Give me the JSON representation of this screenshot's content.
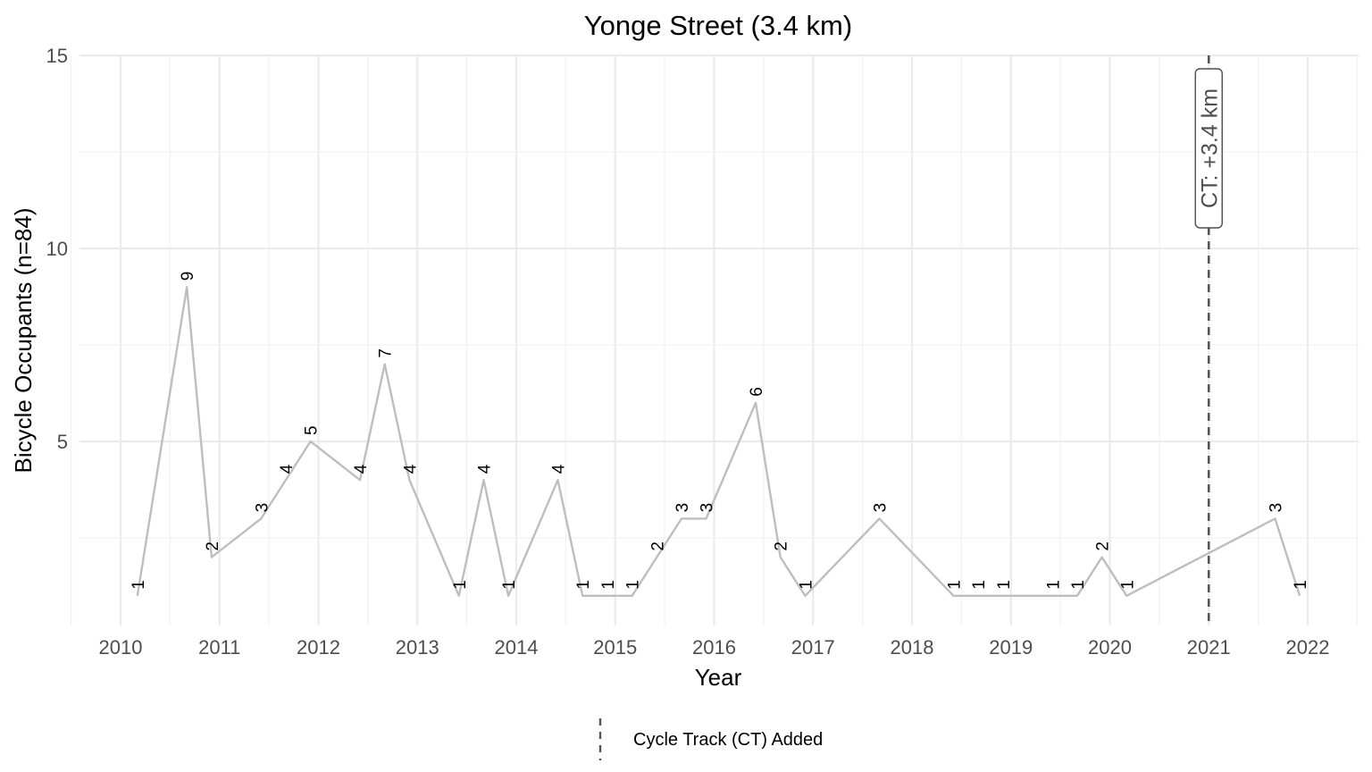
{
  "chart_data": {
    "type": "line",
    "title": "Yonge Street (3.4 km)",
    "xlabel": "Year",
    "ylabel": "Bicycle Occupants (n=84)",
    "xlim": [
      2010,
      2022
    ],
    "ylim": [
      0.5,
      15
    ],
    "x_ticks": [
      2010,
      2011,
      2012,
      2013,
      2014,
      2015,
      2016,
      2017,
      2018,
      2019,
      2020,
      2021,
      2022
    ],
    "x_tick_labels": [
      "2010",
      "2011",
      "2012",
      "2013",
      "2014",
      "2015",
      "2016",
      "2017",
      "2018",
      "2019",
      "2020",
      "2021",
      "2022"
    ],
    "y_ticks": [
      5,
      10,
      15
    ],
    "y_tick_labels": [
      "5",
      "10",
      "15"
    ],
    "grid": true,
    "line_color": "#bebebe",
    "series": [
      {
        "x": [
          2010.17,
          2010.67,
          2010.92,
          2011.42,
          2011.92,
          2012.42,
          2012.67,
          2012.92,
          2013.42,
          2013.67,
          2013.92,
          2014.42,
          2014.67,
          2014.92,
          2015.17,
          2015.42,
          2015.67,
          2015.92,
          2016.42,
          2016.67,
          2016.92,
          2017.67,
          2018.42,
          2018.67,
          2018.92,
          2019.42,
          2019.67,
          2019.92,
          2020.17,
          2021.67,
          2021.92
        ],
        "values": [
          1,
          9,
          2,
          3,
          5,
          4,
          7,
          4,
          1,
          4,
          1,
          4,
          1,
          1,
          1,
          2,
          3,
          3,
          6,
          2,
          1,
          3,
          1,
          1,
          1,
          1,
          1,
          2,
          1,
          3,
          1
        ],
        "labels": [
          "1",
          "9",
          "2",
          "3",
          "5",
          "4",
          "7",
          "4",
          "1",
          "4",
          "1",
          "4",
          "1",
          "1",
          "1",
          "2",
          "3",
          "3",
          "6",
          "2",
          "1",
          "3",
          "1",
          "1",
          "1",
          "1",
          "1",
          "2",
          "1",
          "3",
          "1"
        ]
      }
    ],
    "extra_labels": [
      {
        "x": 2011.67,
        "value": 4,
        "label": "4"
      }
    ],
    "reference_line": {
      "x": 2021,
      "style": "dashed",
      "color": "#555555",
      "label": "CT: +3.4 km"
    },
    "legend": {
      "position": "bottom",
      "entries": [
        {
          "label": "Cycle Track (CT) Added",
          "style": "dashed"
        }
      ]
    }
  }
}
